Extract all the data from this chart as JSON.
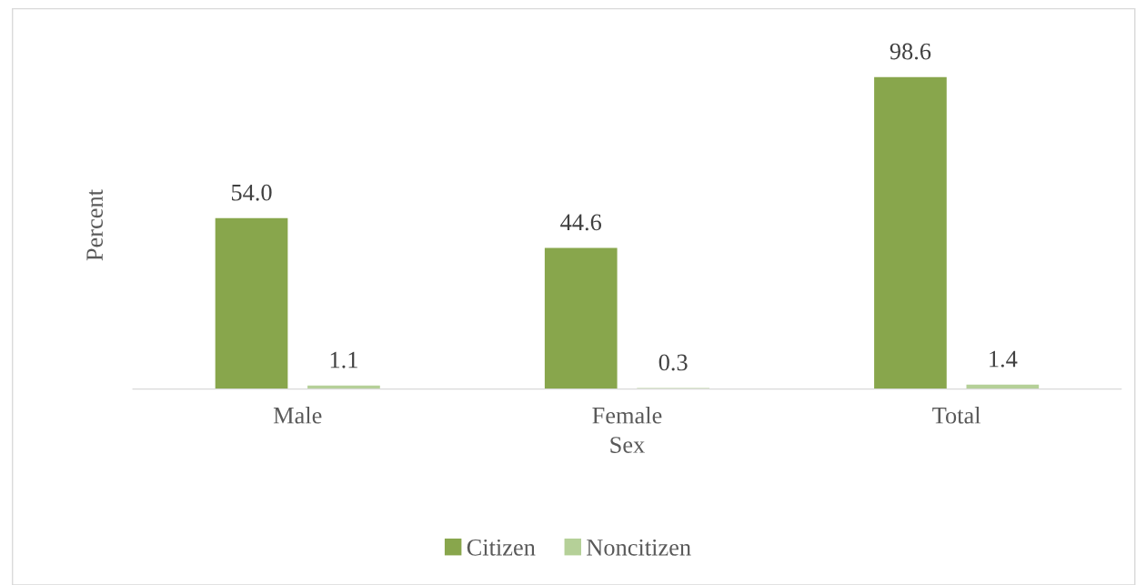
{
  "chart_data": {
    "type": "bar",
    "xlabel": "Sex",
    "ylabel": "Percent",
    "categories": [
      "Male",
      "Female",
      "Total"
    ],
    "series": [
      {
        "name": "Citizen",
        "color": "#88a64c",
        "values": [
          54.0,
          44.6,
          98.6
        ],
        "value_labels": [
          "54.0",
          "44.6",
          "98.6"
        ]
      },
      {
        "name": "Noncitizen",
        "color": "#b5d098",
        "values": [
          1.1,
          0.3,
          1.4
        ],
        "value_labels": [
          "1.1",
          "0.3",
          "1.4"
        ]
      }
    ],
    "legend": "bottom",
    "grid": false
  }
}
